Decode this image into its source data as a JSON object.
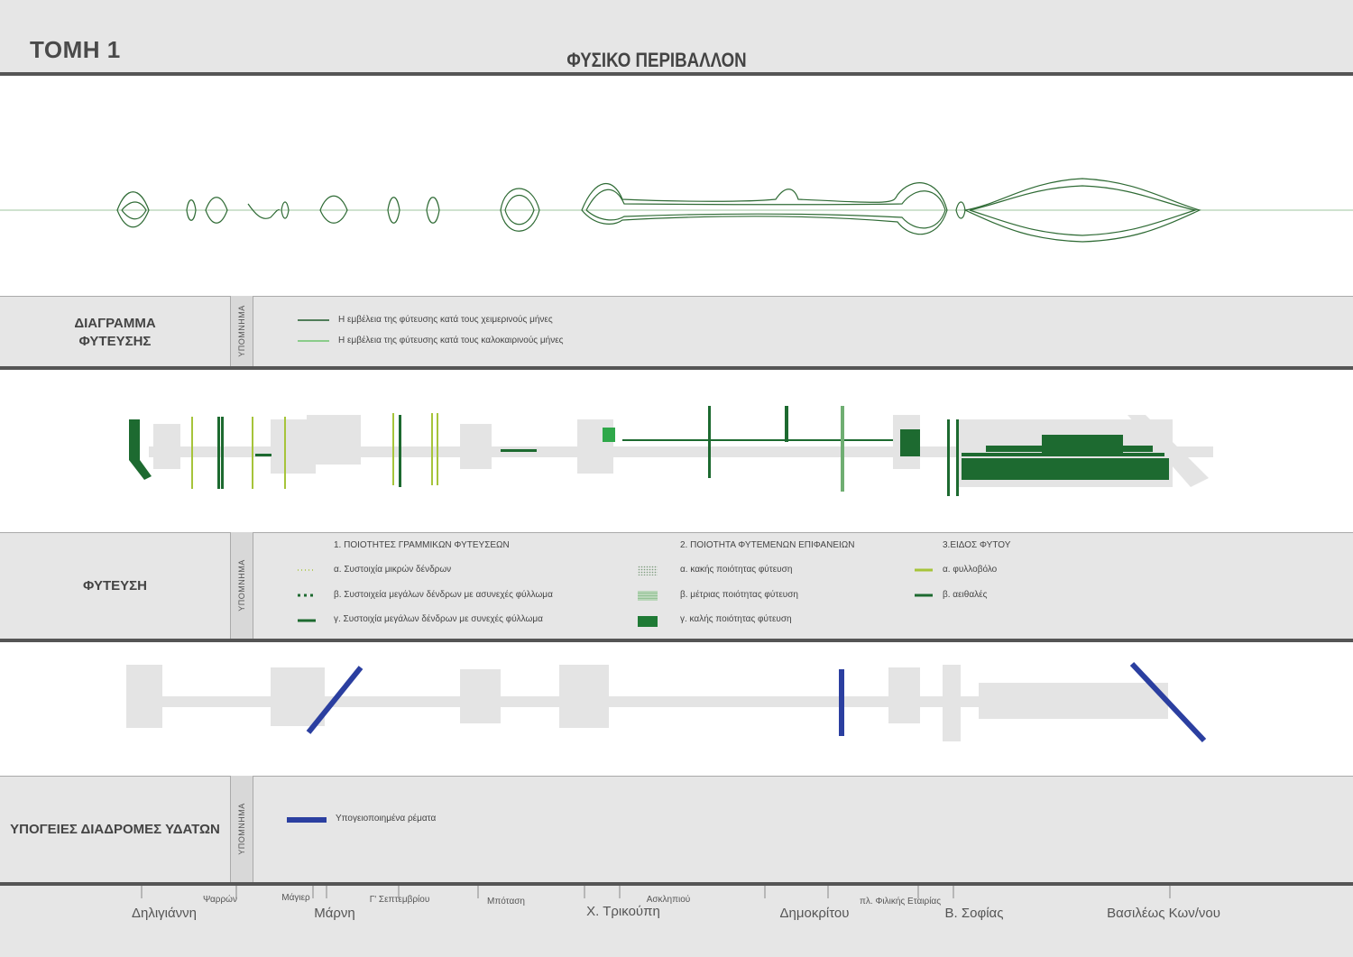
{
  "header": {
    "sheet_title": "ΤΟΜΗ 1",
    "main_title": "ΦΥΣΙΚΟ ΠΕΡΙΒΑΛΛΟΝ"
  },
  "sections": {
    "diagram": {
      "label_line1": "ΔΙΑΓΡΑΜΜΑ",
      "label_line2": "ΦΥΤΕΥΣΗΣ",
      "legend_tag": "ΥΠΟΜΝΗΜΑ",
      "legend": [
        {
          "text": "Η εμβέλεια της φύτευσης κατά τους χειμερινούς μήνες",
          "color": "#1f5a2a"
        },
        {
          "text": "Η εμβέλεια της φύτευσης κατά τους καλοκαιρινούς μήνες",
          "color": "#6cc46c"
        }
      ]
    },
    "planting": {
      "label": "ΦΥΤΕΥΣΗ",
      "legend_tag": "ΥΠΟΜΝΗΜΑ",
      "col1_header": "1. ΠΟΙΟΤΗΤΕΣ ΓΡΑΜΜΙΚΩΝ ΦΥΤΕΥΣΕΩΝ",
      "col1_items": [
        "α. Συστοιχία μικρών δένδρων",
        "β. Συστοιχεία μεγάλων δένδρων με ασυνεχές φύλλωμα",
        "γ. Συστοιχία μεγάλων δένδρων με συνεχές φύλλωμα"
      ],
      "col2_header": "2. ΠΟΙΟΤΗΤΑ ΦΥΤΕΜΕΝΩΝ ΕΠΙΦΑΝΕΙΩΝ",
      "col2_items": [
        "α. κακής ποιότητας φύτευση",
        "β. μέτριας ποιότητας φύτευση",
        "γ. καλής ποιότητας φύτευση"
      ],
      "col3_header": "3.ΕΙΔΟΣ ΦΥΤΟΥ",
      "col3_items": [
        "α. φυλλοβόλο",
        "β. αειθαλές"
      ],
      "colors": {
        "deciduous": "#a6c43a",
        "evergreen": "#1d6a30",
        "good": "#1f7a35",
        "medium": "#6fae72",
        "poor": "#cfd8cf"
      }
    },
    "water": {
      "label": "ΥΠΟΓΕΙΕΣ ΔΙΑΔΡΟΜΕΣ ΥΔΑΤΩΝ",
      "legend_tag": "ΥΠΟΜΝΗΜΑ",
      "legend_item": "Υπογειοποιημένα ρέματα",
      "color": "#2b3fa0"
    }
  },
  "streets": {
    "major": [
      "Δηλιγιάννη",
      "Μάρνη",
      "Χ. Τρικούπη",
      "Δημοκρίτου",
      "Β. Σοφίας",
      "Βασιλέως Κων/νου"
    ],
    "minor": [
      "Ψαρρών",
      "Μάγιερ",
      "Γ' Σεπτεμβρίου",
      "Μπόταση",
      "Ασκληπιού",
      "πλ. Φιλικής Εταιρίας"
    ]
  }
}
